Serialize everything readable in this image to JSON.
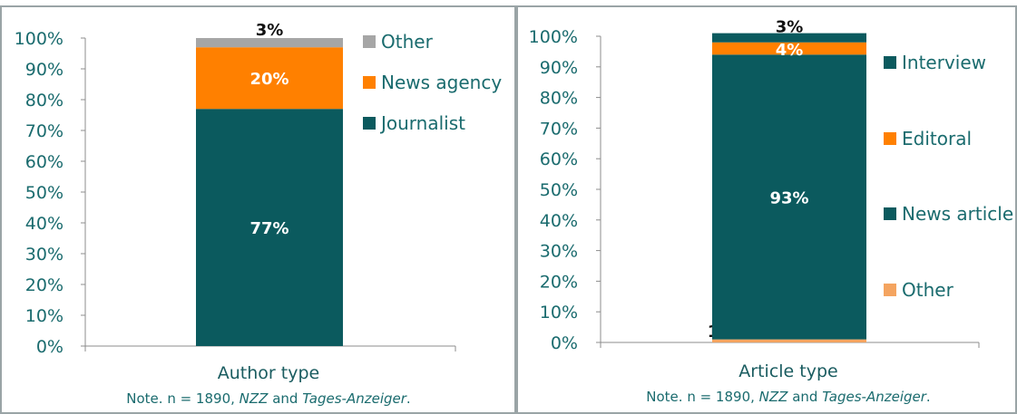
{
  "chart_data": [
    {
      "type": "bar",
      "stacked": true,
      "categories": [
        ""
      ],
      "xlabel": "Author type",
      "note": {
        "prefix": "Note. n = 1890, ",
        "italic1": "NZZ",
        "mid": " and ",
        "italic2": "Tages-Anzeiger",
        "suffix": "."
      },
      "ylim": [
        0,
        100
      ],
      "ytick_labels": [
        "0%",
        "10%",
        "20%",
        "30%",
        "40%",
        "50%",
        "60%",
        "70%",
        "80%",
        "90%",
        "100%"
      ],
      "series": [
        {
          "name": "Journalist",
          "values": [
            77
          ],
          "label": "77%",
          "color": "#0b5a5e"
        },
        {
          "name": "News agency",
          "values": [
            20
          ],
          "label": "20%",
          "color": "#ff8000"
        },
        {
          "name": "Other",
          "values": [
            3
          ],
          "label": "3%",
          "color": "#a6a6a6"
        }
      ],
      "legend": [
        "Other",
        "News agency",
        "Journalist"
      ],
      "legend_position": "right"
    },
    {
      "type": "bar",
      "stacked": true,
      "categories": [
        ""
      ],
      "xlabel": "Article type",
      "note": {
        "prefix": "Note. n = 1890, ",
        "italic1": "NZZ",
        "mid": " and ",
        "italic2": "Tages-Anzeiger",
        "suffix": "."
      },
      "ylim": [
        0,
        100
      ],
      "ytick_labels": [
        "0%",
        "10%",
        "20%",
        "30%",
        "40%",
        "50%",
        "60%",
        "70%",
        "80%",
        "90%",
        "100%"
      ],
      "series": [
        {
          "name": "Other",
          "values": [
            1
          ],
          "label": "1%",
          "color": "#f4a460"
        },
        {
          "name": "News article",
          "values": [
            93
          ],
          "label": "93%",
          "color": "#0b5a5e"
        },
        {
          "name": "Editoral",
          "values": [
            4
          ],
          "label": "4%",
          "color": "#ff8000"
        },
        {
          "name": "Interview",
          "values": [
            3
          ],
          "label": "3%",
          "color": "#0b5a5e"
        }
      ],
      "legend": [
        "Interview",
        "Editoral",
        "News article",
        "Other"
      ],
      "legend_position": "right"
    }
  ]
}
